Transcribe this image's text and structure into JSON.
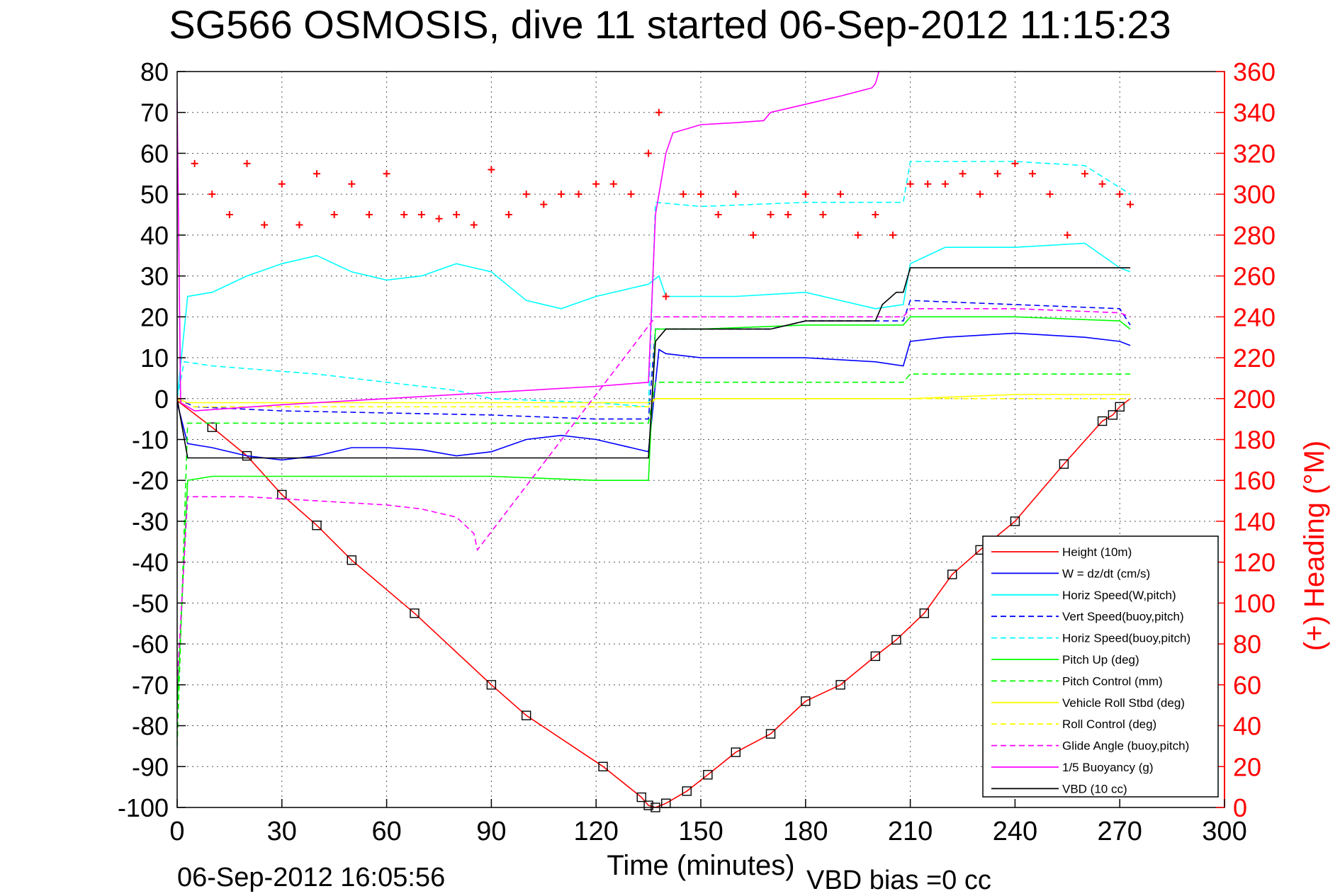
{
  "chart_data": {
    "type": "line",
    "title": "SG566 OSMOSIS, dive 11 started 06-Sep-2012 11:15:23",
    "xlabel": "Time (minutes)",
    "ylabel_right": "(+) Heading (°M)",
    "xlim": [
      0,
      300
    ],
    "ylim": [
      -100,
      80
    ],
    "ylim_right": [
      0,
      360
    ],
    "x_ticks": [
      "0",
      "30",
      "60",
      "90",
      "120",
      "150",
      "180",
      "210",
      "240",
      "270",
      "300"
    ],
    "y_ticks": [
      "80",
      "70",
      "60",
      "50",
      "40",
      "30",
      "20",
      "10",
      "0",
      "-10",
      "-20",
      "-30",
      "-40",
      "-50",
      "-60",
      "-70",
      "-80",
      "-90",
      "-100"
    ],
    "y_right_ticks": [
      "360",
      "340",
      "320",
      "300",
      "280",
      "260",
      "240",
      "220",
      "200",
      "180",
      "160",
      "140",
      "120",
      "100",
      "80",
      "60",
      "40",
      "20",
      "0"
    ],
    "grid": true,
    "legend_position": "bottom-right",
    "footer_left": "06-Sep-2012 16:05:56",
    "footer_right": "VBD bias =0 cc",
    "colors": {
      "red": "#ff0000",
      "blue": "#0000ff",
      "cyan": "#00ffff",
      "green": "#00ff00",
      "yellow": "#ffff00",
      "magenta": "#ff00ff",
      "black": "#000000"
    },
    "series": [
      {
        "name": "Height (10m)",
        "color": "#ff0000",
        "style": "solid",
        "x": [
          0,
          10,
          20,
          30,
          40,
          50,
          68,
          90,
          100,
          122,
          133,
          135,
          137,
          140,
          146,
          152,
          160,
          170,
          180,
          190,
          200,
          206,
          214,
          222,
          230,
          240,
          254,
          265,
          268,
          270,
          273
        ],
        "y": [
          -0.5,
          -7,
          -14,
          -23.5,
          -31,
          -39.5,
          -52.5,
          -70,
          -77.5,
          -90,
          -97.5,
          -99.5,
          -100,
          -99,
          -96,
          -92,
          -86.5,
          -82,
          -74,
          -70,
          -63,
          -59,
          -52.5,
          -43,
          -37,
          -30,
          -16,
          -5.5,
          -4,
          -2,
          0
        ]
      },
      {
        "name": "W = dz/dt (cm/s)",
        "color": "#0000ff",
        "style": "solid",
        "x": [
          0,
          3,
          10,
          20,
          30,
          40,
          50,
          60,
          70,
          80,
          90,
          100,
          110,
          120,
          130,
          135,
          138,
          140,
          150,
          160,
          180,
          200,
          208,
          210,
          220,
          240,
          260,
          270,
          273
        ],
        "y": [
          -1,
          -11,
          -12,
          -14,
          -15,
          -14,
          -12,
          -12,
          -12.5,
          -14,
          -13,
          -10,
          -9,
          -10,
          -12,
          -13,
          12,
          11,
          10,
          10,
          10,
          9,
          8,
          14,
          15,
          16,
          15,
          14,
          13
        ]
      },
      {
        "name": "Horiz Speed(W,pitch)",
        "color": "#00ffff",
        "style": "solid",
        "x": [
          0,
          3,
          10,
          20,
          30,
          40,
          50,
          60,
          70,
          80,
          90,
          100,
          110,
          120,
          130,
          135,
          138,
          140,
          150,
          160,
          180,
          200,
          208,
          210,
          220,
          240,
          260,
          270,
          273
        ],
        "y": [
          0,
          25,
          26,
          30,
          33,
          35,
          31,
          29,
          30,
          33,
          31,
          24,
          22,
          25,
          27,
          28,
          30,
          25,
          25,
          25,
          26,
          22,
          23,
          33,
          37,
          37,
          38,
          32,
          31
        ]
      },
      {
        "name": "Vert Speed(buoy,pitch)",
        "color": "#0000ff",
        "style": "dashed",
        "x": [
          0,
          5,
          30,
          60,
          90,
          120,
          135,
          137,
          150,
          170,
          180,
          200,
          208,
          210,
          240,
          270,
          273
        ],
        "y": [
          0,
          -2,
          -3,
          -3.5,
          -4,
          -5,
          -5,
          17,
          17,
          17,
          19,
          19,
          19,
          24,
          23,
          22,
          18
        ]
      },
      {
        "name": "Horiz Speed(buoy,pitch)",
        "color": "#00ffff",
        "style": "dashed",
        "x": [
          0,
          2,
          10,
          40,
          60,
          80,
          90,
          120,
          135,
          137,
          150,
          180,
          200,
          208,
          210,
          240,
          260,
          273
        ],
        "y": [
          0,
          9,
          8,
          6,
          4,
          2,
          0,
          -1,
          -2,
          48,
          47,
          48,
          48,
          48,
          58,
          58,
          57,
          50
        ]
      },
      {
        "name": "Pitch Up (deg)",
        "color": "#00ff00",
        "style": "solid",
        "x": [
          0,
          3,
          10,
          20,
          40,
          60,
          90,
          120,
          135,
          137,
          150,
          180,
          200,
          208,
          210,
          240,
          270,
          273
        ],
        "y": [
          -75,
          -20,
          -19,
          -19,
          -19,
          -19,
          -19,
          -20,
          -20,
          17,
          17,
          18,
          18,
          18,
          20,
          20,
          19,
          17
        ]
      },
      {
        "name": "Pitch Control (mm)",
        "color": "#00ff00",
        "style": "dashed",
        "x": [
          0,
          3,
          10,
          20,
          40,
          60,
          90,
          120,
          135,
          137,
          150,
          160,
          180,
          200,
          208,
          210,
          240,
          270,
          273
        ],
        "y": [
          -85,
          -6,
          -6,
          -6,
          -6,
          -6,
          -6,
          -6,
          -6,
          4,
          4,
          4,
          4,
          4,
          4,
          6,
          6,
          6,
          6
        ]
      },
      {
        "name": "Vehicle Roll Stbd (deg)",
        "color": "#ffff00",
        "style": "solid",
        "x": [
          0,
          3,
          10,
          20,
          40,
          60,
          90,
          120,
          135,
          137,
          150,
          180,
          200,
          210,
          240,
          270,
          273
        ],
        "y": [
          0,
          -1,
          -1,
          -1,
          -1,
          -1,
          -1,
          -1,
          -1,
          0,
          0,
          0,
          0,
          0,
          1,
          1,
          1
        ]
      },
      {
        "name": "Roll Control (deg)",
        "color": "#ffff00",
        "style": "dashed",
        "x": [
          0,
          3,
          10,
          20,
          40,
          60,
          90,
          120,
          135,
          137,
          150,
          180,
          200,
          210,
          240,
          270,
          273
        ],
        "y": [
          0,
          -2,
          -2,
          -2,
          -2,
          -2,
          -2,
          -2,
          -2,
          0,
          0,
          0,
          0,
          0,
          0,
          0,
          0
        ]
      },
      {
        "name": "Glide Angle (buoy,pitch)",
        "color": "#ff00ff",
        "style": "dashed",
        "x": [
          0,
          3,
          10,
          20,
          40,
          60,
          70,
          80,
          85,
          86,
          137,
          150,
          180,
          200,
          208,
          210,
          240,
          270,
          273
        ],
        "y": [
          -70,
          -24,
          -24,
          -24,
          -25,
          -26,
          -27,
          -29,
          -33,
          -37,
          20,
          20,
          20,
          20,
          20,
          22,
          22,
          21,
          20
        ]
      },
      {
        "name": "1/5 Buoyancy (g)",
        "color": "#ff00ff",
        "style": "solid",
        "x": [
          0,
          1,
          5,
          30,
          60,
          90,
          120,
          135,
          137,
          140,
          142,
          150,
          160,
          168,
          170,
          180,
          190,
          199,
          200,
          201
        ],
        "y": [
          73,
          -1,
          -3,
          -1.5,
          0,
          1.5,
          3,
          4,
          45,
          60,
          65,
          67,
          67.5,
          68,
          70,
          72,
          74,
          76,
          77,
          80
        ]
      },
      {
        "name": "VBD (10 cc)",
        "color": "#000000",
        "style": "solid",
        "x": [
          0,
          3,
          30,
          60,
          90,
          120,
          135,
          137,
          140,
          150,
          160,
          170,
          180,
          190,
          200,
          202,
          206,
          208,
          210,
          220,
          240,
          260,
          273
        ],
        "y": [
          0,
          -14.5,
          -14.5,
          -14.5,
          -14.5,
          -14.5,
          -14.5,
          14,
          17,
          17,
          17,
          17,
          19,
          19,
          19,
          23,
          26,
          26,
          32,
          32,
          32,
          32,
          32
        ]
      },
      {
        "name": "Heading",
        "axis": "right",
        "color": "#ff0000",
        "style": "markers-plus",
        "x": [
          0,
          5,
          10,
          15,
          20,
          25,
          30,
          35,
          40,
          45,
          50,
          55,
          60,
          65,
          70,
          75,
          80,
          85,
          90,
          95,
          100,
          105,
          110,
          115,
          120,
          125,
          130,
          135,
          138,
          140,
          145,
          150,
          155,
          160,
          165,
          170,
          175,
          180,
          185,
          190,
          195,
          200,
          205,
          210,
          215,
          220,
          225,
          230,
          235,
          240,
          245,
          250,
          255,
          260,
          265,
          270,
          273
        ],
        "y": [
          200,
          315,
          300,
          290,
          315,
          285,
          305,
          285,
          310,
          290,
          305,
          290,
          310,
          290,
          290,
          288,
          290,
          285,
          312,
          290,
          300,
          295,
          300,
          300,
          305,
          305,
          300,
          320,
          340,
          250,
          300,
          300,
          290,
          300,
          280,
          290,
          290,
          300,
          290,
          300,
          280,
          290,
          280,
          305,
          305,
          305,
          310,
          300,
          310,
          315,
          310,
          300,
          280,
          310,
          305,
          300,
          295
        ]
      }
    ]
  }
}
